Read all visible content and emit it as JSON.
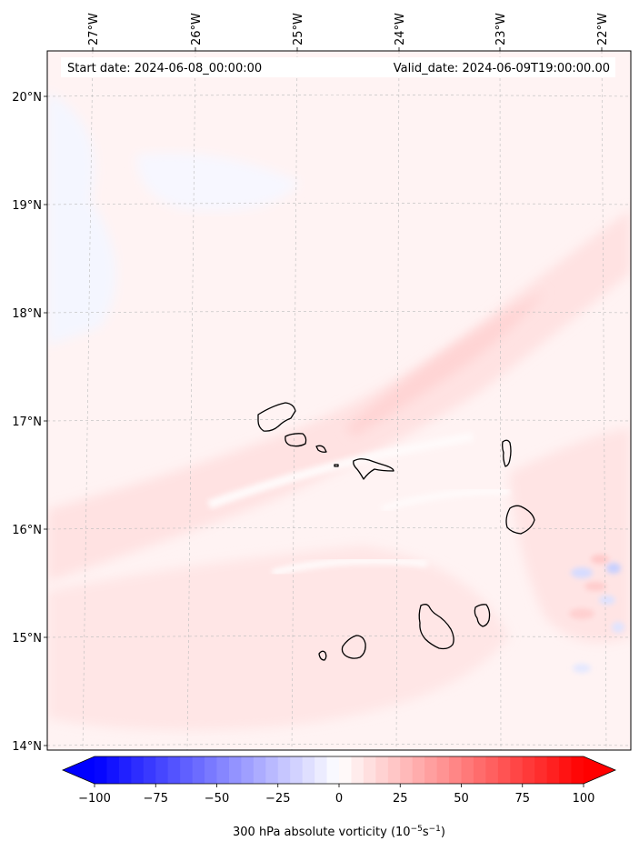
{
  "map": {
    "start_date": "Start date: 2024-06-08_00:00:00",
    "valid_date": "Valid_date: 2024-06-09T19:00:00.00",
    "lon_ticks": [
      "27°W",
      "26°W",
      "25°W",
      "24°W",
      "23°W",
      "22°W"
    ],
    "lat_ticks": [
      "20°N",
      "19°N",
      "18°N",
      "17°N",
      "16°N",
      "15°N",
      "14°N"
    ],
    "gridlines": true,
    "gridline_style": "dashed",
    "colormap": "bwr",
    "land_outline_color": "#000000"
  },
  "colorbar": {
    "label_main": "300 hPa absolute vorticity (10",
    "label_exp1": "−5",
    "label_mid": "s",
    "label_exp2": "−1",
    "label_end": ")",
    "min": -100,
    "max": 100,
    "extend": "both",
    "tick_values": [
      -100,
      -75,
      -50,
      -25,
      0,
      25,
      50,
      75,
      100
    ],
    "tick_labels": [
      "−100",
      "−75",
      "−50",
      "−25",
      "0",
      "25",
      "50",
      "75",
      "100"
    ],
    "low_color": "#0000ff",
    "mid_color": "#ffffff",
    "high_color": "#ff0000"
  }
}
